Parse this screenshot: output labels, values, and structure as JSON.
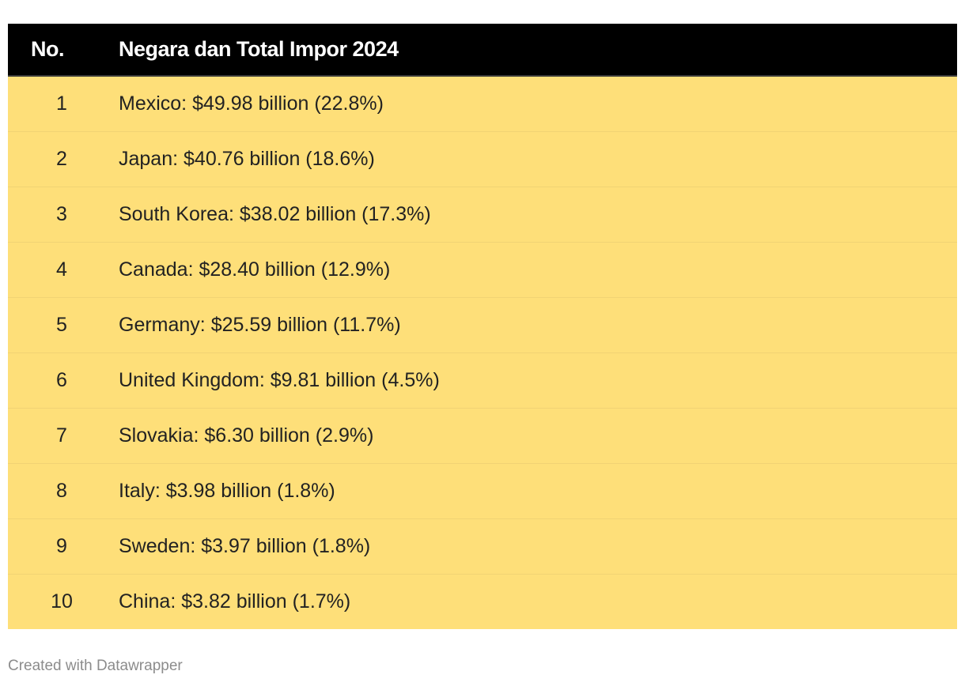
{
  "chart_data": {
    "type": "table",
    "columns": [
      "No.",
      "Negara dan Total Impor 2024"
    ],
    "rows": [
      {
        "no": "1",
        "entry": "Mexico: $49.98 billion (22.8%)",
        "country": "Mexico",
        "value_billion_usd": 49.98,
        "share_percent": 22.8
      },
      {
        "no": "2",
        "entry": "Japan: $40.76 billion (18.6%)",
        "country": "Japan",
        "value_billion_usd": 40.76,
        "share_percent": 18.6
      },
      {
        "no": "3",
        "entry": "South Korea: $38.02 billion (17.3%)",
        "country": "South Korea",
        "value_billion_usd": 38.02,
        "share_percent": 17.3
      },
      {
        "no": "4",
        "entry": "Canada: $28.40 billion (12.9%)",
        "country": "Canada",
        "value_billion_usd": 28.4,
        "share_percent": 12.9
      },
      {
        "no": "5",
        "entry": "Germany: $25.59 billion (11.7%)",
        "country": "Germany",
        "value_billion_usd": 25.59,
        "share_percent": 11.7
      },
      {
        "no": "6",
        "entry": "United Kingdom: $9.81 billion (4.5%)",
        "country": "United Kingdom",
        "value_billion_usd": 9.81,
        "share_percent": 4.5
      },
      {
        "no": "7",
        "entry": "Slovakia: $6.30 billion (2.9%)",
        "country": "Slovakia",
        "value_billion_usd": 6.3,
        "share_percent": 2.9
      },
      {
        "no": "8",
        "entry": "Italy: $3.98 billion (1.8%)",
        "country": "Italy",
        "value_billion_usd": 3.98,
        "share_percent": 1.8
      },
      {
        "no": "9",
        "entry": "Sweden: $3.97 billion (1.8%)",
        "country": "Sweden",
        "value_billion_usd": 3.97,
        "share_percent": 1.8
      },
      {
        "no": "10",
        "entry": "China: $3.82 billion (1.7%)",
        "country": "China",
        "value_billion_usd": 3.82,
        "share_percent": 1.7
      }
    ]
  },
  "footer": {
    "credit": "Created with Datawrapper"
  },
  "colors": {
    "header_background": "#000000",
    "header_text": "#ffffff",
    "row_background": "#fedf79",
    "row_divider": "#f1d374",
    "body_text": "#222222",
    "footer_text": "#8c8c8c"
  }
}
